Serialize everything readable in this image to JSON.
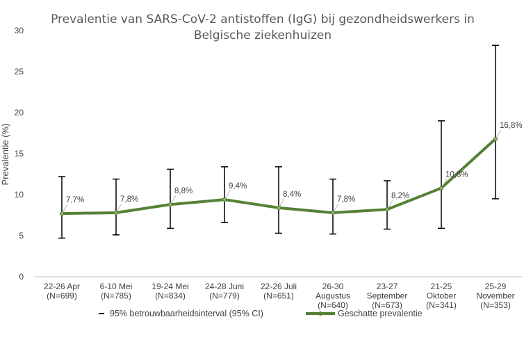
{
  "chart_data": {
    "type": "line",
    "title_lines": [
      "Prevalentie van SARS-CoV-2 antistoffen (IgG) bij gezondheidswerkers in",
      "Belgische ziekenhuizen"
    ],
    "ylabel": "Prevalentie (%)",
    "ylim": [
      0,
      30
    ],
    "yticks": [
      0,
      5,
      10,
      15,
      20,
      25,
      30
    ],
    "categories": [
      [
        "22-26 Apr",
        "(N=699)"
      ],
      [
        "6-10 Mei",
        "(N=785)"
      ],
      [
        "19-24 Mei",
        "(N=834)"
      ],
      [
        "24-28 Juni",
        "(N=779)"
      ],
      [
        "22-26 Juli",
        "(N=651)"
      ],
      [
        "26-30",
        "Augustus",
        "(N=640)"
      ],
      [
        "23-27",
        "September",
        "(N=673)"
      ],
      [
        "21-25",
        "Oktober",
        "(N=341)"
      ],
      [
        "25-29",
        "November",
        "(N=353)"
      ]
    ],
    "series": [
      {
        "name": "Geschatte prevalentie",
        "color": "#548235",
        "values": [
          7.7,
          7.8,
          8.8,
          9.4,
          8.4,
          7.8,
          8.2,
          10.8,
          16.8
        ],
        "labels": [
          "7,7%",
          "7,8%",
          "8,8%",
          "9,4%",
          "8,4%",
          "7,8%",
          "8,2%",
          "10,8%",
          "16,8%"
        ]
      }
    ],
    "error_bars": {
      "name": "95% betrouwbaarheidsinterval (95% CI)",
      "color": "#000000",
      "lower": [
        4.7,
        5.1,
        5.9,
        6.6,
        5.3,
        5.2,
        5.8,
        5.9,
        9.5
      ],
      "upper": [
        12.2,
        11.9,
        13.1,
        13.4,
        13.4,
        11.9,
        11.7,
        19.0,
        28.2
      ]
    },
    "legend_position": "bottom",
    "grid": false
  }
}
